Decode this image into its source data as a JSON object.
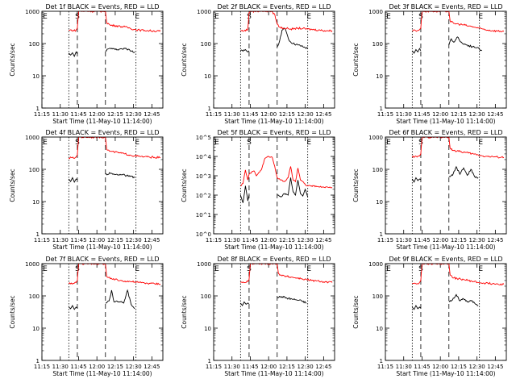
{
  "figure": {
    "xlabel": "Start Time (11-May-10 11:14:00)",
    "ylabel": "Counts/sec",
    "x_ticks": [
      "11:15",
      "11:30",
      "11:45",
      "12:00",
      "12:15",
      "12:30",
      "12:45"
    ],
    "markers": [
      "S",
      "E"
    ],
    "colors": {
      "events": "#000000",
      "lld": "#ff0000",
      "axes": "#000000",
      "background": "#ffffff"
    }
  },
  "chart_data": [
    {
      "type": "line",
      "title": "Det 1f BLACK = Events, RED = LLD",
      "y_log": true,
      "ylim": [
        1,
        1000
      ],
      "y_ticks": [
        "1",
        "10",
        "100",
        "1000"
      ],
      "xlim_min": [
        1,
        100
      ],
      "x_ticks_min": [
        1,
        16,
        31,
        46,
        61,
        76,
        91
      ],
      "vlines": {
        "dotted": [
          23,
          78
        ],
        "dashed": [
          30,
          53
        ]
      },
      "marker_positions": {
        "S": 30,
        "E": 79
      },
      "series": [
        {
          "name": "Events",
          "x": [
            23,
            24.5,
            26,
            27.5,
            29,
            30,
            53,
            57,
            61,
            65,
            69,
            73,
            77
          ],
          "y": [
            50,
            44,
            52,
            40,
            55,
            48,
            60,
            72,
            65,
            68,
            70,
            62,
            55
          ]
        },
        {
          "name": "LLD",
          "x": [
            23,
            25,
            27,
            29,
            30,
            31,
            32,
            53,
            54,
            57,
            61,
            65,
            69,
            73,
            77,
            81,
            85,
            89,
            93,
            98
          ],
          "y": [
            250,
            265,
            250,
            260,
            300,
            1000,
            1000,
            1000,
            450,
            370,
            360,
            340,
            330,
            300,
            270,
            260,
            255,
            250,
            245,
            240
          ]
        }
      ]
    },
    {
      "type": "line",
      "title": "Det 2f BLACK = Events, RED = LLD",
      "y_log": true,
      "ylim": [
        1,
        1000
      ],
      "y_ticks": [
        "1",
        "10",
        "100",
        "1000"
      ],
      "xlim_min": [
        1,
        100
      ],
      "x_ticks_min": [
        1,
        16,
        31,
        46,
        61,
        76,
        91
      ],
      "vlines": {
        "dotted": [
          23,
          78
        ],
        "dashed": [
          30,
          53
        ]
      },
      "marker_positions": {
        "S": 30,
        "E": 79
      },
      "series": [
        {
          "name": "Events",
          "x": [
            23,
            25,
            27,
            29,
            30,
            53,
            55,
            57,
            59,
            61,
            63,
            66,
            70,
            74,
            78
          ],
          "y": [
            60,
            58,
            65,
            55,
            60,
            80,
            120,
            260,
            300,
            200,
            120,
            100,
            90,
            80,
            70
          ]
        },
        {
          "name": "LLD",
          "x": [
            23,
            26,
            29,
            30,
            31,
            33,
            36,
            40,
            44,
            48,
            51,
            53,
            55,
            58,
            62,
            66,
            70,
            74,
            78,
            83,
            88,
            93,
            98
          ],
          "y": [
            250,
            250,
            270,
            900,
            1000,
            1000,
            1000,
            1000,
            1000,
            1000,
            800,
            400,
            320,
            300,
            290,
            280,
            300,
            290,
            280,
            270,
            260,
            250,
            250
          ]
        }
      ]
    },
    {
      "type": "line",
      "title": "Det 3f BLACK = Events, RED = LLD",
      "y_log": true,
      "ylim": [
        1,
        1000
      ],
      "y_ticks": [
        "1",
        "10",
        "100",
        "1000"
      ],
      "xlim_min": [
        1,
        100
      ],
      "x_ticks_min": [
        1,
        16,
        31,
        46,
        61,
        76,
        91
      ],
      "vlines": {
        "dotted": [
          23,
          78
        ],
        "dashed": [
          30,
          53
        ]
      },
      "marker_positions": {
        "S": 30,
        "E": 79
      },
      "series": [
        {
          "name": "Events",
          "x": [
            23,
            24.5,
            26,
            27.5,
            29,
            30,
            53,
            55,
            57,
            60,
            64,
            68,
            72,
            76,
            80
          ],
          "y": [
            60,
            50,
            65,
            55,
            70,
            60,
            90,
            140,
            110,
            160,
            100,
            90,
            80,
            75,
            60
          ]
        },
        {
          "name": "LLD",
          "x": [
            23,
            25,
            27,
            29,
            30,
            31,
            32,
            53,
            54,
            57,
            61,
            65,
            69,
            73,
            77,
            81,
            85,
            89,
            93,
            98
          ],
          "y": [
            250,
            260,
            250,
            270,
            300,
            1000,
            1000,
            1000,
            500,
            420,
            400,
            380,
            350,
            330,
            300,
            280,
            260,
            250,
            245,
            240
          ]
        }
      ]
    },
    {
      "type": "line",
      "title": "Det 4f BLACK = Events, RED = LLD",
      "y_log": true,
      "ylim": [
        1,
        1000
      ],
      "y_ticks": [
        "1",
        "10",
        "100",
        "1000"
      ],
      "xlim_min": [
        1,
        100
      ],
      "x_ticks_min": [
        1,
        16,
        31,
        46,
        61,
        76,
        91
      ],
      "vlines": {
        "dotted": [
          23,
          78
        ],
        "dashed": [
          30,
          53
        ]
      },
      "marker_positions": {
        "S": 30,
        "E": 79
      },
      "series": [
        {
          "name": "Events",
          "x": [
            23,
            24.5,
            26,
            27.5,
            29,
            30,
            53,
            57,
            61,
            65,
            69,
            73,
            77
          ],
          "y": [
            50,
            42,
            55,
            40,
            50,
            48,
            70,
            75,
            68,
            70,
            65,
            60,
            55
          ]
        },
        {
          "name": "LLD",
          "x": [
            23,
            25,
            27,
            29,
            30,
            31,
            32,
            53,
            54,
            57,
            61,
            65,
            69,
            73,
            77,
            81,
            85,
            89,
            93,
            98
          ],
          "y": [
            220,
            230,
            220,
            240,
            280,
            1000,
            1000,
            1000,
            420,
            360,
            340,
            320,
            300,
            280,
            260,
            250,
            245,
            240,
            235,
            230
          ]
        }
      ]
    },
    {
      "type": "line",
      "title": "Det 5f BLACK = Events, RED = LLD",
      "y_log": true,
      "ylim": [
        1,
        100000
      ],
      "y_ticks": [
        "10^0",
        "10^1",
        "10^2",
        "10^3",
        "10^4",
        "10^5"
      ],
      "xlim_min": [
        1,
        100
      ],
      "x_ticks_min": [
        1,
        16,
        31,
        46,
        61,
        76,
        91
      ],
      "vlines": {
        "dotted": [
          23,
          78
        ],
        "dashed": [
          30,
          53
        ]
      },
      "marker_positions": {
        "S": 30,
        "E": 79
      },
      "series": [
        {
          "name": "Events",
          "x": [
            23,
            25,
            27,
            29,
            30,
            53,
            56,
            59,
            62,
            64,
            66,
            68,
            70,
            72,
            74,
            76,
            78
          ],
          "y": [
            100,
            40,
            300,
            50,
            100,
            100,
            80,
            120,
            100,
            800,
            150,
            100,
            600,
            120,
            90,
            200,
            80
          ]
        },
        {
          "name": "LLD",
          "x": [
            23,
            25,
            27,
            29,
            30,
            32,
            34,
            36,
            38,
            40,
            43,
            46,
            49,
            51,
            53,
            56,
            59,
            62,
            64,
            66,
            68,
            70,
            72,
            74,
            77,
            81,
            86,
            91,
            98
          ],
          "y": [
            300,
            400,
            2000,
            600,
            1200,
            1500,
            1800,
            1000,
            1500,
            2000,
            8000,
            10000,
            9000,
            3000,
            800,
            600,
            500,
            800,
            3000,
            600,
            500,
            2500,
            600,
            500,
            300,
            300,
            280,
            260,
            250
          ]
        }
      ]
    },
    {
      "type": "line",
      "title": "Det 6f BLACK = Events, RED = LLD",
      "y_log": true,
      "ylim": [
        1,
        1000
      ],
      "y_ticks": [
        "1",
        "10",
        "100",
        "1000"
      ],
      "xlim_min": [
        1,
        100
      ],
      "x_ticks_min": [
        1,
        16,
        31,
        46,
        61,
        76,
        91
      ],
      "vlines": {
        "dotted": [
          23,
          78
        ],
        "dashed": [
          30,
          53
        ]
      },
      "marker_positions": {
        "S": 30,
        "E": 79
      },
      "series": [
        {
          "name": "Events",
          "x": [
            23,
            24.5,
            26,
            27.5,
            29,
            30,
            53,
            56,
            59,
            62,
            65,
            68,
            71,
            74,
            77
          ],
          "y": [
            50,
            40,
            55,
            45,
            50,
            48,
            60,
            65,
            120,
            70,
            110,
            65,
            100,
            60,
            55
          ]
        },
        {
          "name": "LLD",
          "x": [
            23,
            25,
            27,
            29,
            30,
            31,
            32,
            53,
            54,
            57,
            61,
            65,
            69,
            73,
            77,
            81,
            85,
            89,
            93,
            98
          ],
          "y": [
            240,
            250,
            240,
            260,
            300,
            1000,
            1000,
            1000,
            450,
            380,
            360,
            340,
            320,
            300,
            280,
            260,
            250,
            245,
            240,
            235
          ]
        }
      ]
    },
    {
      "type": "line",
      "title": "Det 7f BLACK = Events, RED = LLD",
      "y_log": true,
      "ylim": [
        1,
        1000
      ],
      "y_ticks": [
        "1",
        "10",
        "100",
        "1000"
      ],
      "xlim_min": [
        1,
        100
      ],
      "x_ticks_min": [
        1,
        16,
        31,
        46,
        61,
        76,
        91
      ],
      "vlines": {
        "dotted": [
          23,
          78
        ],
        "dashed": [
          30,
          53
        ]
      },
      "marker_positions": {
        "S": 30,
        "E": 79
      },
      "series": [
        {
          "name": "Events",
          "x": [
            23,
            24.5,
            26,
            27.5,
            29,
            30,
            53,
            56,
            58,
            60,
            62,
            65,
            68,
            71,
            74,
            77
          ],
          "y": [
            45,
            40,
            50,
            38,
            45,
            42,
            60,
            70,
            150,
            65,
            70,
            65,
            60,
            150,
            55,
            40
          ]
        },
        {
          "name": "LLD",
          "x": [
            23,
            25,
            27,
            29,
            30,
            31,
            32,
            53,
            54,
            57,
            61,
            65,
            69,
            73,
            77,
            81,
            85,
            89,
            93,
            98
          ],
          "y": [
            240,
            250,
            240,
            260,
            300,
            1000,
            1000,
            1000,
            400,
            340,
            320,
            300,
            290,
            280,
            270,
            260,
            250,
            245,
            240,
            235
          ]
        }
      ]
    },
    {
      "type": "line",
      "title": "Det 8f BLACK = Events, RED = LLD",
      "y_log": true,
      "ylim": [
        1,
        1000
      ],
      "y_ticks": [
        "1",
        "10",
        "100",
        "1000"
      ],
      "xlim_min": [
        1,
        100
      ],
      "x_ticks_min": [
        1,
        16,
        31,
        46,
        61,
        76,
        91
      ],
      "vlines": {
        "dotted": [
          23,
          78
        ],
        "dashed": [
          30,
          53
        ]
      },
      "marker_positions": {
        "S": 30,
        "E": 79
      },
      "series": [
        {
          "name": "Events",
          "x": [
            23,
            24.5,
            26,
            27.5,
            29,
            30,
            53,
            57,
            61,
            65,
            69,
            73,
            77
          ],
          "y": [
            60,
            50,
            65,
            55,
            60,
            58,
            90,
            95,
            85,
            80,
            75,
            70,
            60
          ]
        },
        {
          "name": "LLD",
          "x": [
            23,
            25,
            27,
            29,
            30,
            31,
            32,
            53,
            54,
            57,
            61,
            65,
            69,
            73,
            77,
            81,
            85,
            89,
            93,
            98
          ],
          "y": [
            260,
            270,
            260,
            280,
            320,
            1000,
            1000,
            1000,
            500,
            420,
            400,
            380,
            360,
            340,
            320,
            300,
            290,
            280,
            270,
            260
          ]
        }
      ]
    },
    {
      "type": "line",
      "title": "Det 9f BLACK = Events, RED = LLD",
      "y_log": true,
      "ylim": [
        1,
        1000
      ],
      "y_ticks": [
        "1",
        "10",
        "100",
        "1000"
      ],
      "xlim_min": [
        1,
        100
      ],
      "x_ticks_min": [
        1,
        16,
        31,
        46,
        61,
        76,
        91
      ],
      "vlines": {
        "dotted": [
          23,
          78
        ],
        "dashed": [
          30,
          53
        ]
      },
      "marker_positions": {
        "S": 30,
        "E": 79
      },
      "series": [
        {
          "name": "Events",
          "x": [
            23,
            24.5,
            26,
            27.5,
            29,
            30,
            53,
            56,
            59,
            62,
            65,
            68,
            71,
            74,
            77
          ],
          "y": [
            45,
            38,
            50,
            40,
            45,
            42,
            70,
            75,
            110,
            70,
            80,
            65,
            70,
            60,
            50
          ]
        },
        {
          "name": "LLD",
          "x": [
            23,
            25,
            27,
            29,
            30,
            31,
            32,
            53,
            54,
            57,
            61,
            65,
            69,
            73,
            77,
            81,
            85,
            89,
            93,
            98
          ],
          "y": [
            240,
            250,
            240,
            260,
            300,
            1000,
            1000,
            1000,
            450,
            360,
            340,
            320,
            300,
            280,
            260,
            250,
            245,
            240,
            235,
            230
          ]
        }
      ]
    }
  ]
}
